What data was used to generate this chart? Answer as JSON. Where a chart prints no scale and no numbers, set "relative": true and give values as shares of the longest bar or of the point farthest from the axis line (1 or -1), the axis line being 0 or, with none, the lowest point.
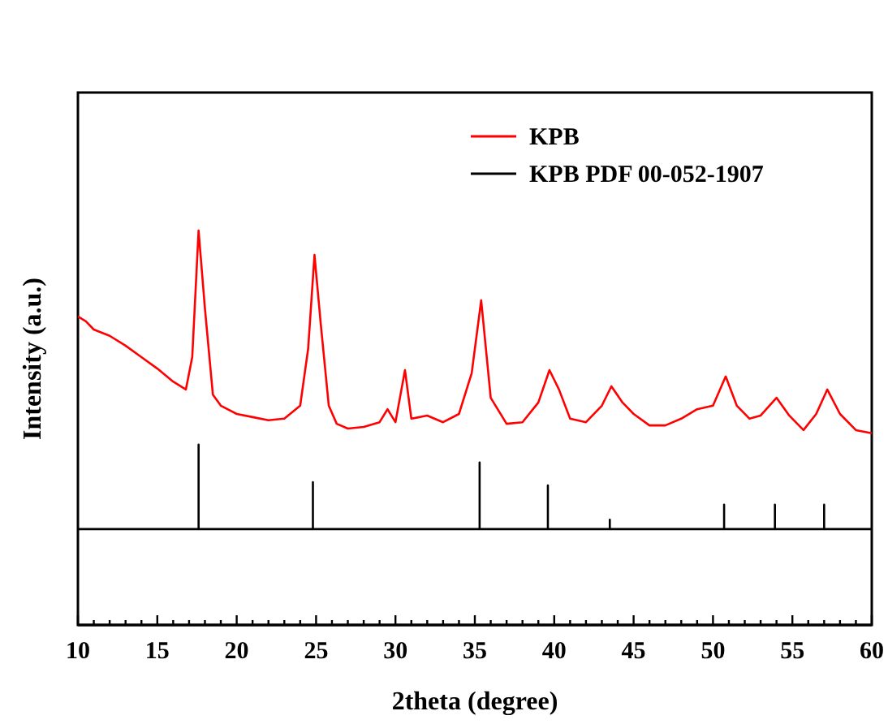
{
  "chart_data": {
    "type": "line",
    "relative": true,
    "xlabel": "2theta (degree)",
    "ylabel": "Intensity (a.u.)",
    "xlim": [
      10,
      60
    ],
    "xticks": [
      10,
      {
        "value": 11,
        "label": null
      },
      {
        "value": 12,
        "label": null
      },
      {
        "value": 13,
        "label": null
      },
      {
        "value": 14,
        "label": null
      },
      15,
      {
        "value": 16,
        "label": null
      },
      {
        "value": 17,
        "label": null
      },
      {
        "value": 18,
        "label": null
      },
      {
        "value": 19,
        "label": null
      },
      20,
      {
        "value": 21,
        "label": null
      },
      {
        "value": 22,
        "label": null
      },
      {
        "value": 23,
        "label": null
      },
      {
        "value": 24,
        "label": null
      },
      25,
      {
        "value": 26,
        "label": null
      },
      {
        "value": 27,
        "label": null
      },
      {
        "value": 28,
        "label": null
      },
      {
        "value": 29,
        "label": null
      },
      30,
      {
        "value": 31,
        "label": null
      },
      {
        "value": 32,
        "label": null
      },
      {
        "value": 33,
        "label": null
      },
      {
        "value": 34,
        "label": null
      },
      35,
      {
        "value": 36,
        "label": null
      },
      {
        "value": 37,
        "label": null
      },
      {
        "value": 38,
        "label": null
      },
      {
        "value": 39,
        "label": null
      },
      40,
      {
        "value": 41,
        "label": null
      },
      {
        "value": 42,
        "label": null
      },
      {
        "value": 43,
        "label": null
      },
      {
        "value": 44,
        "label": null
      },
      45,
      {
        "value": 46,
        "label": null
      },
      {
        "value": 47,
        "label": null
      },
      {
        "value": 48,
        "label": null
      },
      {
        "value": 49,
        "label": null
      },
      50,
      {
        "value": 51,
        "label": null
      },
      {
        "value": 52,
        "label": null
      },
      {
        "value": 53,
        "label": null
      },
      {
        "value": 54,
        "label": null
      },
      55,
      {
        "value": 56,
        "label": null
      },
      {
        "value": 57,
        "label": null
      },
      {
        "value": 58,
        "label": null
      },
      {
        "value": 59,
        "label": null
      },
      60
    ],
    "legend": "top right",
    "line_style": "solid",
    "marker": "none",
    "series": [
      {
        "name": "KPB",
        "color": "#ff0000",
        "x": [
          10,
          10.5,
          11,
          12,
          13,
          14,
          15,
          16,
          16.8,
          17.2,
          17.6,
          18,
          18.5,
          19,
          20,
          21,
          22,
          23,
          24,
          24.5,
          24.9,
          25.3,
          25.8,
          26.3,
          27,
          28,
          29,
          29.5,
          30,
          30.6,
          31,
          32,
          33,
          34,
          34.8,
          35.4,
          36,
          37,
          38,
          39,
          39.7,
          40.3,
          41,
          42,
          43,
          43.6,
          44.3,
          45,
          46,
          47,
          48,
          49,
          50,
          50.8,
          51.5,
          52.3,
          53,
          54,
          54.8,
          55.7,
          56.5,
          57.2,
          58,
          59,
          60
        ],
        "values": [
          0.782,
          0.77,
          0.749,
          0.733,
          0.708,
          0.679,
          0.65,
          0.617,
          0.597,
          0.679,
          1,
          0.802,
          0.584,
          0.556,
          0.535,
          0.527,
          0.519,
          0.523,
          0.556,
          0.7,
          0.938,
          0.761,
          0.556,
          0.51,
          0.498,
          0.502,
          0.514,
          0.547,
          0.514,
          0.646,
          0.523,
          0.531,
          0.514,
          0.535,
          0.638,
          0.823,
          0.576,
          0.51,
          0.514,
          0.564,
          0.646,
          0.597,
          0.523,
          0.514,
          0.556,
          0.605,
          0.564,
          0.535,
          0.506,
          0.506,
          0.523,
          0.547,
          0.556,
          0.63,
          0.556,
          0.523,
          0.531,
          0.576,
          0.531,
          0.494,
          0.535,
          0.597,
          0.535,
          0.494,
          0.486
        ]
      },
      {
        "name": "KPB PDF 00-052-1907",
        "color": "#000000",
        "x": [
          10,
          17.6,
          17.6,
          17.6,
          24.8,
          24.8,
          24.8,
          35.3,
          35.3,
          35.3,
          39.6,
          39.6,
          39.6,
          43.5,
          43.5,
          43.5,
          50.7,
          50.7,
          50.7,
          53.9,
          53.9,
          53.9,
          57,
          57,
          57,
          60
        ],
        "values": [
          0.243,
          0.243,
          0.457,
          0.243,
          0.243,
          0.362,
          0.243,
          0.243,
          0.412,
          0.243,
          0.243,
          0.354,
          0.243,
          0.243,
          0.267,
          0.243,
          0.243,
          0.305,
          0.243,
          0.243,
          0.305,
          0.243,
          0.243,
          0.305,
          0.243,
          0.243
        ]
      }
    ]
  }
}
